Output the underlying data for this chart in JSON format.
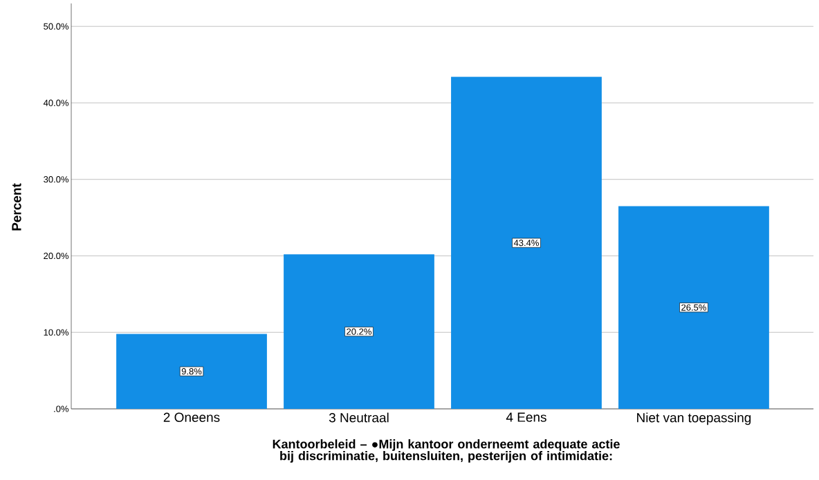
{
  "chart_data": {
    "type": "bar",
    "xlabel": "Kantoorbeleid – ●Mijn kantoor onderneemt adequate actie bij discriminatie, buitensluiten, pesterijen of intimidatie:",
    "ylabel": "Percent",
    "categories": [
      "2 Oneens",
      "3 Neutraal",
      "4 Eens",
      "Niet van toepassing"
    ],
    "values": [
      9.8,
      20.2,
      43.4,
      26.5
    ],
    "value_labels": [
      "9.8%",
      "20.2%",
      "43.4%",
      "26.5%"
    ],
    "color": "#128ee6",
    "ylim": [
      0,
      53
    ],
    "yticks": [
      {
        "value": 0,
        "label": ".0%"
      },
      {
        "value": 10,
        "label": "10.0%"
      },
      {
        "value": 20,
        "label": "20.0%"
      },
      {
        "value": 30,
        "label": "30.0%"
      },
      {
        "value": 40,
        "label": "40.0%"
      },
      {
        "value": 50,
        "label": "50.0%"
      }
    ],
    "grid": "y"
  }
}
